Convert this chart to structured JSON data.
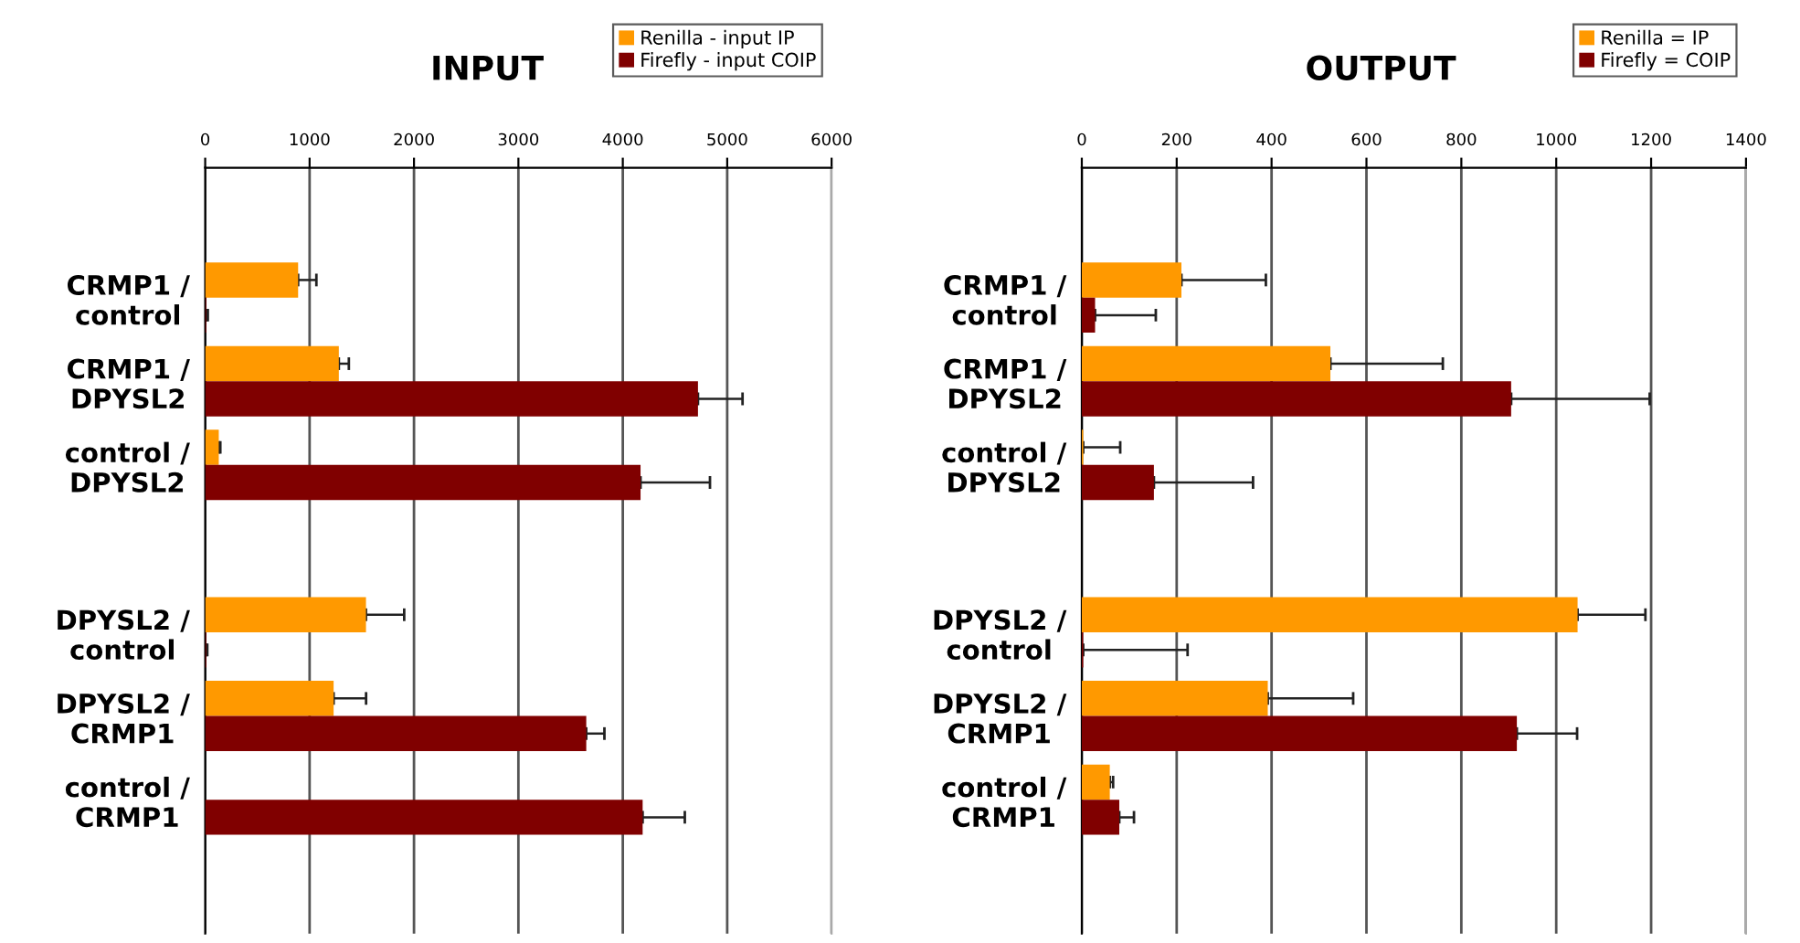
{
  "chart_data": [
    {
      "type": "bar",
      "orientation": "horizontal",
      "title": "INPUT",
      "categories": [
        "CRMP1 /\ncontrol",
        "CRMP1 /\nDPYSL2",
        "control /\nDPYSL2",
        null,
        "DPYSL2 /\ncontrol",
        "DPYSL2 /\nCRMP1",
        "control /\nCRMP1"
      ],
      "series": [
        {
          "name": "Renilla - input IP",
          "color": "#ff9900",
          "values": [
            890,
            1280,
            130,
            null,
            1540,
            1230,
            0
          ],
          "errors": [
            [
              890,
              1065
            ],
            [
              1280,
              1376
            ],
            [
              130,
              145
            ],
            null,
            [
              1540,
              1906
            ],
            [
              1230,
              1541
            ],
            null
          ]
        },
        {
          "name": "Firefly - input COIP",
          "color": "#800000",
          "values": [
            10,
            4720,
            4170,
            null,
            10,
            3650,
            4190
          ],
          "errors": [
            [
              10,
              25
            ],
            [
              4720,
              5147
            ],
            [
              4170,
              4835
            ],
            null,
            [
              10,
              20
            ],
            [
              3650,
              3824
            ],
            [
              4190,
              4594
            ]
          ]
        }
      ],
      "xlim": [
        0,
        6000
      ],
      "xticks": [
        0,
        1000,
        2000,
        3000,
        4000,
        5000,
        6000
      ],
      "grid": "x",
      "legend": "top right"
    },
    {
      "type": "bar",
      "orientation": "horizontal",
      "title": "OUTPUT",
      "categories": [
        "CRMP1 /\ncontrol",
        "CRMP1 /\nDPYSL2",
        "control /\nDPYSL2",
        null,
        "DPYSL2 /\ncontrol",
        "DPYSL2 /\nCRMP1",
        "control /\nCRMP1"
      ],
      "series": [
        {
          "name": "Renilla = IP",
          "color": "#ff9900",
          "values": [
            210,
            524,
            3,
            null,
            1045,
            392,
            59
          ],
          "errors": [
            [
              210,
              388
            ],
            [
              524,
              761
            ],
            [
              3,
              81
            ],
            null,
            [
              1045,
              1188
            ],
            [
              392,
              572
            ],
            [
              59,
              66
            ]
          ]
        },
        {
          "name": "Firefly = COIP",
          "color": "#800000",
          "values": [
            28,
            905,
            152,
            null,
            3,
            917,
            79
          ],
          "errors": [
            [
              28,
              156
            ],
            [
              905,
              1197
            ],
            [
              152,
              361
            ],
            null,
            [
              3,
              223
            ],
            [
              917,
              1044
            ],
            [
              79,
              110
            ]
          ]
        }
      ],
      "xlim": [
        0,
        1400
      ],
      "xticks": [
        0,
        200,
        400,
        600,
        800,
        1000,
        1200,
        1400
      ],
      "grid": "x",
      "legend": "top right"
    }
  ]
}
